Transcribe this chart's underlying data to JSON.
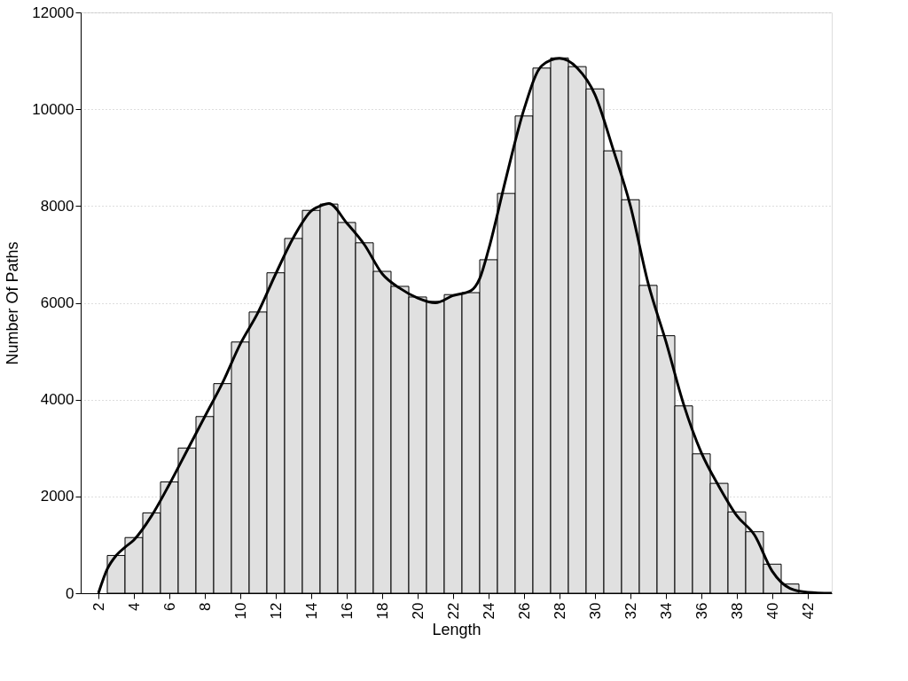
{
  "chart_data": {
    "type": "histogram",
    "xlabel": "Length",
    "ylabel": "Number Of Paths",
    "color": "#e0e0e0",
    "bins": [
      2.5,
      3.5,
      4.5,
      5.5,
      6.5,
      7.5,
      8.5,
      9.5,
      10.5,
      11.5,
      12.5,
      13.5,
      14.5,
      15.5,
      16.5,
      17.5,
      18.5,
      19.5,
      20.5,
      21.5,
      22.5,
      23.5,
      24.5,
      25.5,
      26.5,
      27.5,
      28.5,
      29.5,
      30.5,
      31.5,
      32.5,
      33.5,
      34.5,
      35.5,
      36.5,
      37.5,
      38.5,
      39.5,
      40.5,
      41.5
    ],
    "values": [
      780,
      1150,
      1660,
      2300,
      3000,
      3650,
      4330,
      5190,
      5810,
      6620,
      7330,
      7910,
      8040,
      7660,
      7240,
      6650,
      6340,
      6120,
      6030,
      6170,
      6210,
      6890,
      8260,
      9860,
      10850,
      11060,
      10880,
      10420,
      9140,
      8130,
      6360,
      5320,
      3870,
      2880,
      2270,
      1680,
      1270,
      600,
      190
    ],
    "series": [
      {
        "type": "line",
        "color": "#000000",
        "x": [
          2,
          2.5,
          3,
          3.5,
          4,
          5,
          6,
          7,
          8,
          9,
          10,
          11,
          12,
          13,
          14,
          14.5,
          15,
          16,
          17,
          18,
          19,
          20,
          21,
          22,
          23,
          23.5,
          24,
          25,
          26,
          27,
          28,
          29,
          30,
          31,
          32,
          33,
          34,
          35,
          36,
          37,
          38,
          39,
          40,
          41,
          42,
          43.35
        ],
        "values": [
          0,
          500,
          780,
          950,
          1100,
          1600,
          2250,
          2950,
          3650,
          4350,
          5150,
          5800,
          6600,
          7350,
          7900,
          8000,
          8050,
          7650,
          7200,
          6600,
          6300,
          6100,
          6000,
          6150,
          6250,
          6500,
          7100,
          8600,
          10000,
          10900,
          11050,
          10850,
          10300,
          9200,
          8000,
          6400,
          5200,
          3900,
          2900,
          2200,
          1600,
          1200,
          450,
          100,
          20,
          0
        ]
      }
    ],
    "xlim": [
      1,
      43.35
    ],
    "xticks": [
      2,
      4,
      6,
      8,
      10,
      12,
      14,
      16,
      18,
      20,
      22,
      24,
      26,
      28,
      30,
      32,
      34,
      36,
      38,
      40,
      42
    ],
    "ylim": [
      0,
      12000
    ],
    "yticks": [
      0,
      2000,
      4000,
      6000,
      8000,
      10000,
      12000
    ],
    "grid": "y"
  }
}
